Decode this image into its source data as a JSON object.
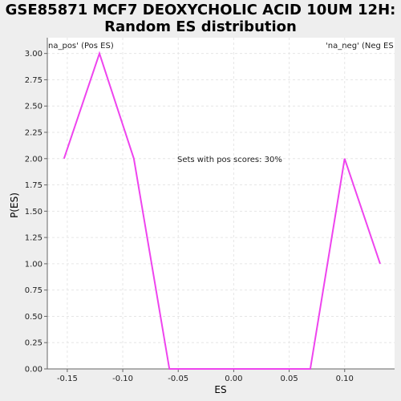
{
  "title_lines": [
    "GSE85871 MCF7 DEOXYCHOLIC ACID 10UM 12H:",
    "Random ES distribution"
  ],
  "colors": {
    "series": "#ee44ee",
    "pos_legend": "#dd3333",
    "neg_legend": "#3333bb",
    "plot_bg": "#ffffff",
    "page_bg": "#eeeeee",
    "grid": "#e6e6e6"
  },
  "legend": {
    "pos": "na_pos' (Pos ES)",
    "neg": "'na_neg' (Neg ES"
  },
  "annotation": "Sets with pos scores: 30%",
  "chart_data": {
    "type": "line",
    "title": "GSE85871 MCF7 DEOXYCHOLIC ACID 10UM 12H: Random ES distribution",
    "xlabel": "ES",
    "ylabel": "P(ES)",
    "xlim": [
      -0.168,
      0.145
    ],
    "ylim": [
      0,
      3.15
    ],
    "grid": true,
    "x_ticks": [
      -0.15,
      -0.1,
      -0.05,
      0.0,
      0.05,
      0.1
    ],
    "x_tick_labels": [
      "-0.15",
      "-0.10",
      "-0.05",
      "0.00",
      "0.05",
      "0.10"
    ],
    "y_ticks": [
      0,
      0.25,
      0.5,
      0.75,
      1.0,
      1.25,
      1.5,
      1.75,
      2.0,
      2.25,
      2.5,
      2.75,
      3.0
    ],
    "y_tick_labels": [
      "0.00",
      "0.25",
      "0.50",
      "0.75",
      "1.00",
      "1.25",
      "1.50",
      "1.75",
      "2.00",
      "2.25",
      "2.50",
      "2.75",
      "3.00"
    ],
    "series": [
      {
        "x": [
          -0.153,
          -0.121,
          -0.09,
          -0.058,
          0.069,
          0.1,
          0.132
        ],
        "y": [
          2.0,
          3.0,
          2.0,
          0.0,
          0.0,
          2.0,
          1.0
        ]
      }
    ]
  }
}
